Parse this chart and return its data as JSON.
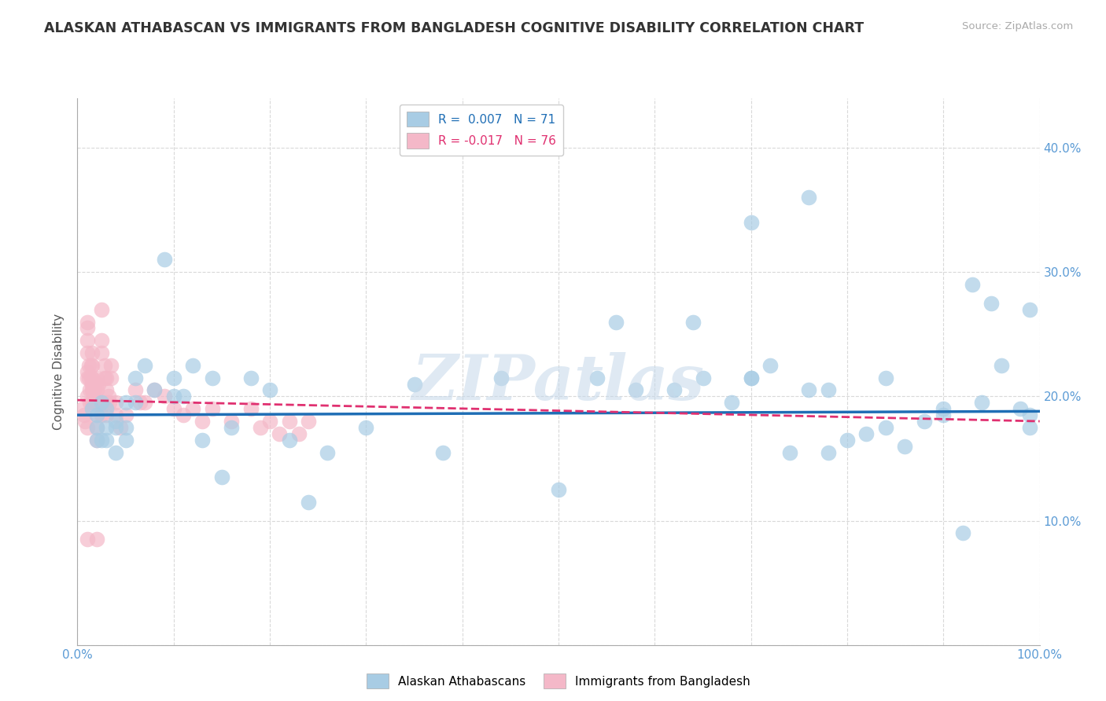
{
  "title": "ALASKAN ATHABASCAN VS IMMIGRANTS FROM BANGLADESH COGNITIVE DISABILITY CORRELATION CHART",
  "source": "Source: ZipAtlas.com",
  "ylabel": "Cognitive Disability",
  "xlim": [
    0,
    1.0
  ],
  "ylim": [
    0,
    0.44
  ],
  "R_blue": 0.007,
  "N_blue": 71,
  "R_pink": -0.017,
  "N_pink": 76,
  "blue_color": "#a8cce4",
  "pink_color": "#f4b8c8",
  "blue_line_color": "#1f6eb5",
  "pink_line_color": "#e03070",
  "watermark": "ZIPatlas",
  "legend_label_blue": "Alaskan Athabascans",
  "legend_label_pink": "Immigrants from Bangladesh",
  "blue_scatter_x": [
    0.015,
    0.02,
    0.02,
    0.02,
    0.025,
    0.025,
    0.03,
    0.03,
    0.03,
    0.04,
    0.04,
    0.04,
    0.05,
    0.05,
    0.05,
    0.06,
    0.06,
    0.07,
    0.08,
    0.09,
    0.1,
    0.1,
    0.11,
    0.12,
    0.13,
    0.14,
    0.15,
    0.16,
    0.18,
    0.2,
    0.22,
    0.24,
    0.26,
    0.3,
    0.35,
    0.38,
    0.44,
    0.5,
    0.54,
    0.58,
    0.62,
    0.65,
    0.68,
    0.7,
    0.72,
    0.74,
    0.76,
    0.78,
    0.8,
    0.82,
    0.84,
    0.86,
    0.88,
    0.9,
    0.92,
    0.94,
    0.96,
    0.98,
    0.99,
    0.76,
    0.7,
    0.56,
    0.93,
    0.95,
    0.64,
    0.7,
    0.78,
    0.84,
    0.9,
    0.99,
    0.99
  ],
  "blue_scatter_y": [
    0.19,
    0.185,
    0.175,
    0.165,
    0.195,
    0.165,
    0.19,
    0.175,
    0.165,
    0.18,
    0.175,
    0.155,
    0.195,
    0.175,
    0.165,
    0.215,
    0.195,
    0.225,
    0.205,
    0.31,
    0.215,
    0.2,
    0.2,
    0.225,
    0.165,
    0.215,
    0.135,
    0.175,
    0.215,
    0.205,
    0.165,
    0.115,
    0.155,
    0.175,
    0.21,
    0.155,
    0.215,
    0.125,
    0.215,
    0.205,
    0.205,
    0.215,
    0.195,
    0.215,
    0.225,
    0.155,
    0.205,
    0.155,
    0.165,
    0.17,
    0.175,
    0.16,
    0.18,
    0.19,
    0.09,
    0.195,
    0.225,
    0.19,
    0.185,
    0.36,
    0.34,
    0.26,
    0.29,
    0.275,
    0.26,
    0.215,
    0.205,
    0.215,
    0.185,
    0.175,
    0.27
  ],
  "pink_scatter_x": [
    0.005,
    0.007,
    0.008,
    0.01,
    0.01,
    0.01,
    0.01,
    0.01,
    0.01,
    0.01,
    0.01,
    0.012,
    0.012,
    0.013,
    0.013,
    0.014,
    0.014,
    0.015,
    0.015,
    0.015,
    0.015,
    0.015,
    0.015,
    0.016,
    0.016,
    0.017,
    0.017,
    0.018,
    0.018,
    0.019,
    0.02,
    0.02,
    0.02,
    0.02,
    0.02,
    0.02,
    0.022,
    0.022,
    0.025,
    0.025,
    0.025,
    0.025,
    0.028,
    0.028,
    0.03,
    0.03,
    0.03,
    0.03,
    0.032,
    0.033,
    0.035,
    0.035,
    0.04,
    0.04,
    0.045,
    0.05,
    0.06,
    0.065,
    0.07,
    0.08,
    0.09,
    0.1,
    0.11,
    0.12,
    0.13,
    0.14,
    0.16,
    0.18,
    0.19,
    0.2,
    0.21,
    0.22,
    0.23,
    0.24,
    0.01,
    0.02
  ],
  "pink_scatter_y": [
    0.19,
    0.185,
    0.18,
    0.26,
    0.255,
    0.245,
    0.235,
    0.22,
    0.215,
    0.2,
    0.175,
    0.225,
    0.215,
    0.205,
    0.195,
    0.225,
    0.215,
    0.235,
    0.225,
    0.215,
    0.21,
    0.205,
    0.195,
    0.21,
    0.205,
    0.2,
    0.195,
    0.21,
    0.205,
    0.195,
    0.215,
    0.205,
    0.195,
    0.185,
    0.175,
    0.165,
    0.21,
    0.195,
    0.27,
    0.245,
    0.235,
    0.185,
    0.225,
    0.215,
    0.215,
    0.205,
    0.195,
    0.185,
    0.2,
    0.195,
    0.225,
    0.215,
    0.195,
    0.185,
    0.175,
    0.185,
    0.205,
    0.195,
    0.195,
    0.205,
    0.2,
    0.19,
    0.185,
    0.19,
    0.18,
    0.19,
    0.18,
    0.19,
    0.175,
    0.18,
    0.17,
    0.18,
    0.17,
    0.18,
    0.085,
    0.085
  ],
  "background_color": "#ffffff",
  "grid_color": "#d0d0d0",
  "title_color": "#333333",
  "tick_label_color": "#5b9bd5"
}
